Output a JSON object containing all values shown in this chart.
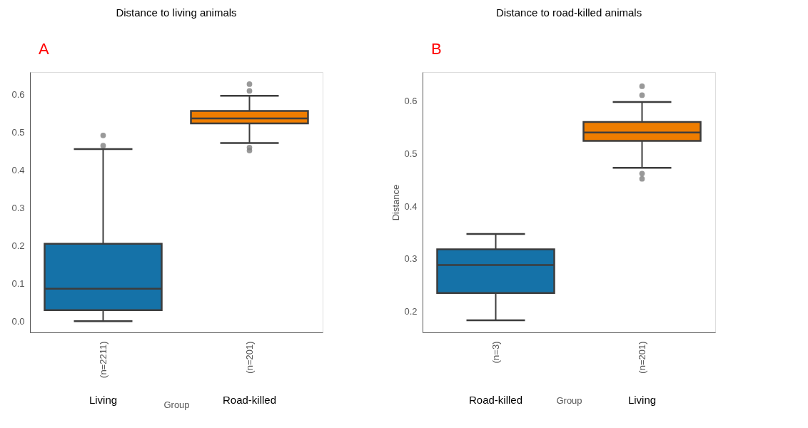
{
  "chart_data": [
    {
      "type": "box",
      "title": "Distance to living animals",
      "xlabel": "Group",
      "categories": [
        "(n=2211)",
        "(n=201)"
      ],
      "colors": [
        "#1572a8",
        "#ee7d00"
      ],
      "boxes": [
        {
          "low": 0.0,
          "q1": 0.029,
          "median": 0.086,
          "q3": 0.205,
          "high": 0.456,
          "outliers": [
            0.465,
            0.492
          ]
        },
        {
          "low": 0.472,
          "q1": 0.524,
          "median": 0.537,
          "q3": 0.557,
          "high": 0.597,
          "outliers": [
            0.452,
            0.46,
            0.61,
            0.628
          ]
        }
      ],
      "ylim": [
        -0.03,
        0.66
      ],
      "yticks": [
        {
          "value": 0,
          "label": "0.0"
        },
        0.1,
        0.2,
        0.3,
        0.4,
        0.5,
        0.6
      ],
      "grid": false,
      "legend": false,
      "annotations": [
        "A",
        "Living",
        "Road-killed"
      ]
    },
    {
      "type": "box",
      "title": "Distance to road-killed animals",
      "xlabel": "Group",
      "ylabel": "Distance",
      "categories": [
        "(n=3)",
        "(n=201)"
      ],
      "colors": [
        "#1572a8",
        "#ee7d00"
      ],
      "boxes": [
        {
          "low": 0.183,
          "q1": 0.235,
          "median": 0.288,
          "q3": 0.318,
          "high": 0.347
        },
        {
          "low": 0.473,
          "q1": 0.524,
          "median": 0.54,
          "q3": 0.56,
          "high": 0.598,
          "outliers": [
            0.452,
            0.462,
            0.611,
            0.628
          ]
        }
      ],
      "ylim": [
        0.16,
        0.655
      ],
      "yticks": [
        0.2,
        0.3,
        0.4,
        0.5,
        0.6
      ],
      "grid": false,
      "legend": false,
      "annotations": [
        "B",
        "Road-killed",
        "Living"
      ]
    }
  ]
}
